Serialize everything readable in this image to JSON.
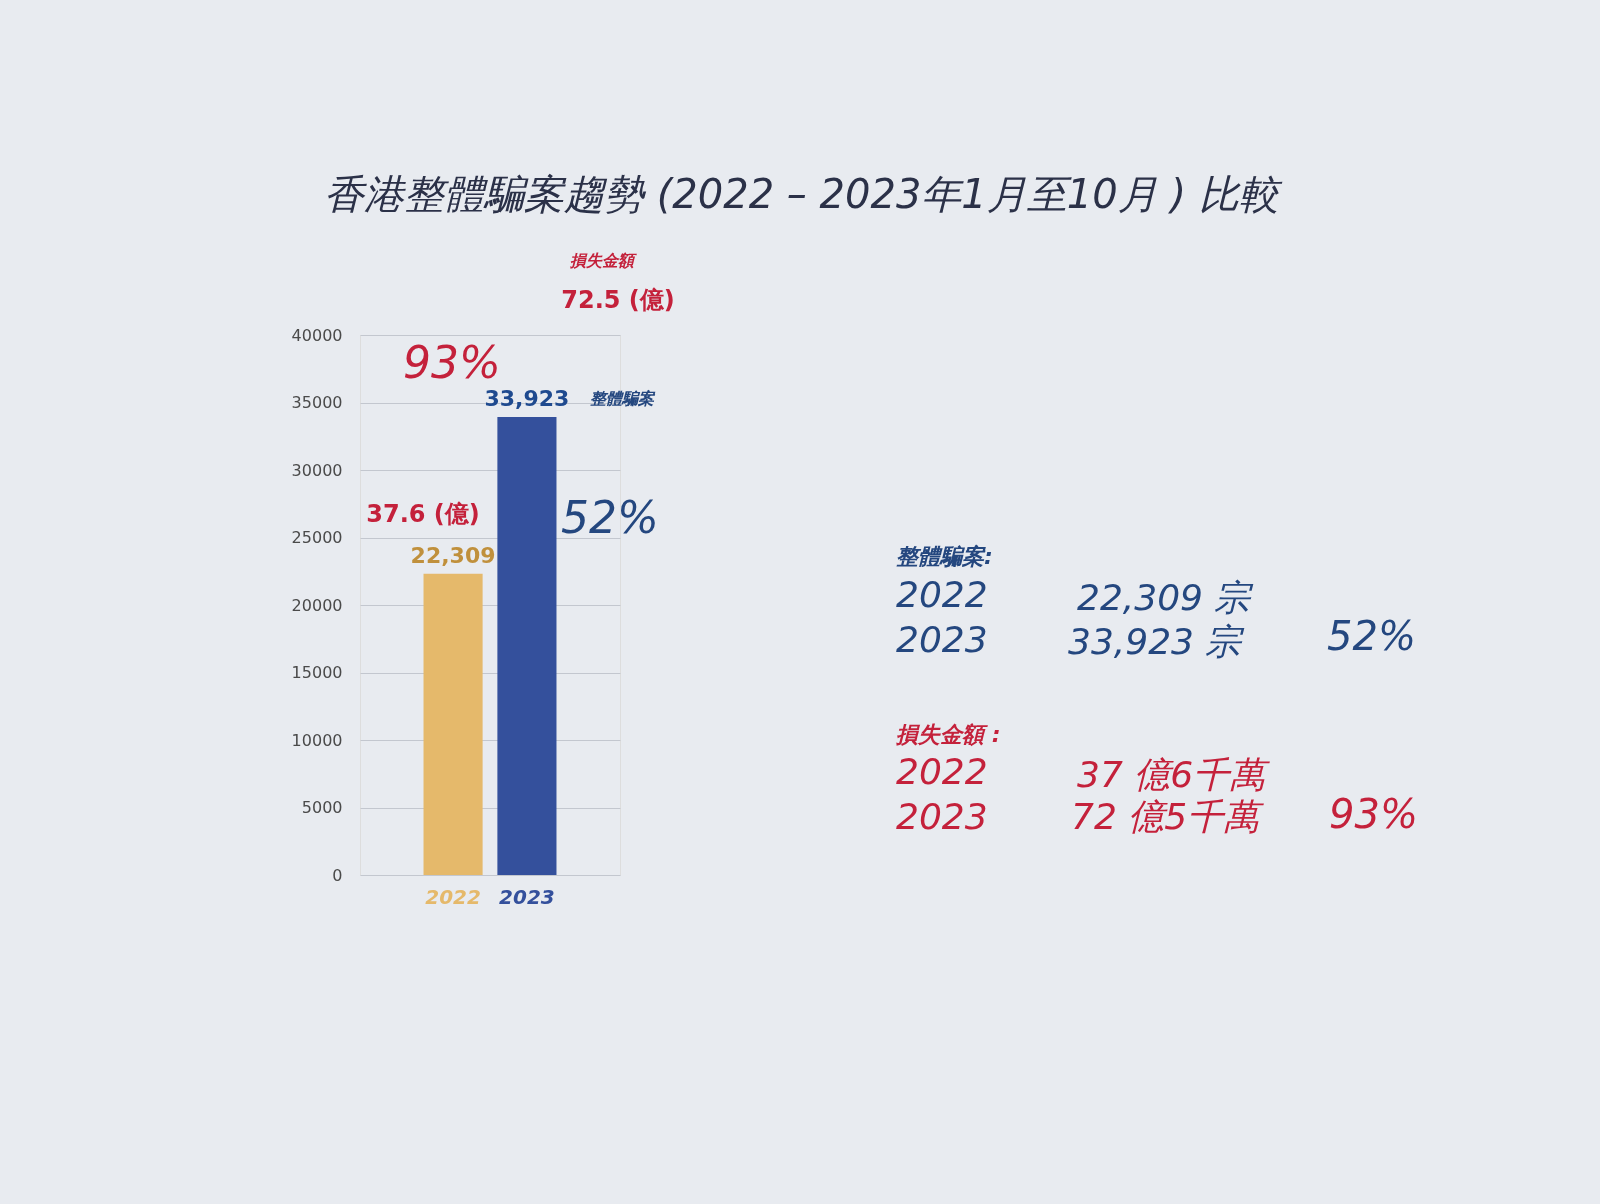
{
  "chart_data": {
    "type": "bar",
    "title": "香港整體騙案趨勢 (2022 – 2023年1月至10月 ) 比較",
    "categories": [
      "2022",
      "2023"
    ],
    "values": [
      22309,
      33923
    ],
    "colors": [
      "#e5b96b",
      "#34509c"
    ],
    "value_labels": [
      "22,309",
      "33,923"
    ],
    "ylim": [
      0,
      40000
    ],
    "yticks": [
      0,
      5000,
      10000,
      15000,
      20000,
      25000,
      30000,
      35000,
      40000
    ],
    "grid": "y",
    "annotations": [
      "損失金額",
      "72.5 (億)",
      "93%",
      "37.6 (億)",
      "整體騙案",
      "52%",
      "整體騙案:",
      "2022",
      "22,309 宗",
      "2023",
      "33,923 宗",
      "52%",
      "損失金額 :",
      "2022",
      "37 億6千萬",
      "2023",
      "72 億5千萬",
      "93%"
    ]
  }
}
